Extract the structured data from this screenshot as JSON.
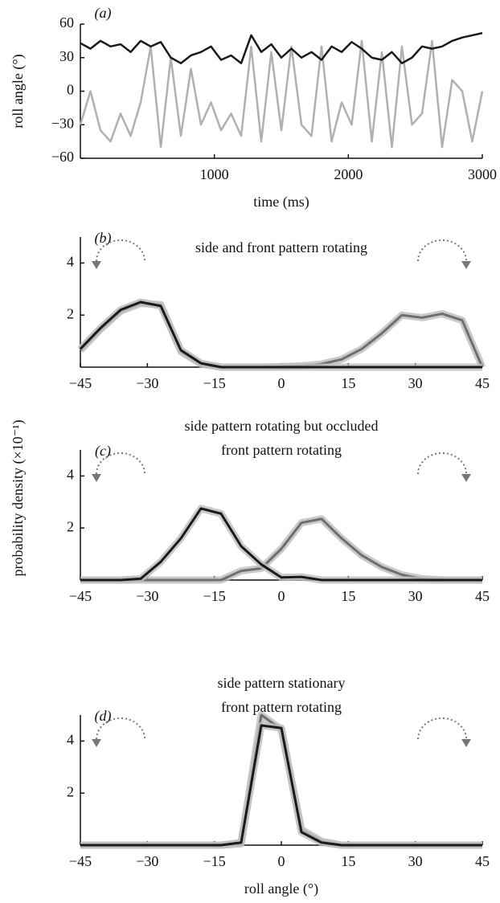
{
  "shared_ylabel": "probability density (×10⁻¹)",
  "chart_data": [
    {
      "type": "line",
      "label": "(a)",
      "xlabel": "time (ms)",
      "ylabel": "roll angle (°)",
      "x": [
        0,
        75,
        150,
        225,
        300,
        375,
        450,
        525,
        600,
        675,
        750,
        825,
        900,
        975,
        1050,
        1125,
        1200,
        1275,
        1350,
        1425,
        1500,
        1575,
        1650,
        1725,
        1800,
        1875,
        1950,
        2025,
        2100,
        2175,
        2250,
        2325,
        2400,
        2475,
        2550,
        2625,
        2700,
        2775,
        2850,
        2925,
        3000
      ],
      "xlim": [
        0,
        3000
      ],
      "xticks": [
        1000,
        2000,
        3000
      ],
      "ylim": [
        -60,
        60
      ],
      "yticks": [
        60,
        30,
        0,
        {
          "value": -30,
          "label": "−30"
        },
        {
          "value": -60,
          "label": "−60"
        }
      ],
      "series": [
        {
          "color": "#b0b0b0",
          "values": [
            -30,
            0,
            -35,
            -45,
            -20,
            -40,
            -10,
            40,
            -50,
            30,
            -40,
            20,
            -30,
            -10,
            -35,
            -20,
            -40,
            40,
            -45,
            35,
            -35,
            40,
            -30,
            -40,
            40,
            -45,
            -10,
            -30,
            45,
            -45,
            35,
            -50,
            40,
            -30,
            -20,
            45,
            -50,
            10,
            0,
            -45,
            0
          ]
        },
        {
          "color": "#1a1a1a",
          "values": [
            43,
            38,
            45,
            40,
            42,
            35,
            45,
            40,
            44,
            30,
            25,
            32,
            35,
            40,
            28,
            32,
            25,
            50,
            35,
            42,
            30,
            38,
            30,
            35,
            28,
            40,
            35,
            44,
            38,
            30,
            28,
            35,
            25,
            30,
            40,
            38,
            40,
            45,
            48,
            50,
            52
          ]
        }
      ]
    },
    {
      "type": "line",
      "label": "(b)",
      "title": "side and front pattern rotating",
      "x": [
        -45,
        -40.5,
        -36,
        -31.5,
        -27,
        -22.5,
        -18,
        -13.5,
        -9,
        -4.5,
        0,
        4.5,
        9,
        13.5,
        18,
        22.5,
        27,
        31.5,
        36,
        40.5,
        45
      ],
      "xlim": [
        -45,
        45
      ],
      "xticks": [
        {
          "value": -45,
          "label": "−45"
        },
        {
          "value": -30,
          "label": "−30"
        },
        {
          "value": -15,
          "label": "−15"
        },
        0,
        15,
        30,
        45
      ],
      "ylim": [
        0,
        5
      ],
      "yticks": [
        2,
        4
      ],
      "series": [
        {
          "color": "#6e6e6e",
          "values": [
            0.65,
            1.45,
            2.15,
            2.45,
            2.4,
            0.6,
            0.12,
            0,
            0,
            0,
            0.02,
            0.05,
            0.12,
            0.3,
            0.7,
            1.3,
            2.0,
            1.9,
            2.05,
            1.8,
            0
          ]
        },
        {
          "color": "#1a1a1a",
          "values": [
            0.7,
            1.5,
            2.2,
            2.5,
            2.35,
            0.65,
            0.15,
            0,
            0,
            0,
            0,
            0,
            0,
            0,
            0,
            0,
            0,
            0,
            0,
            0,
            0
          ]
        }
      ]
    },
    {
      "type": "line",
      "label": "(c)",
      "title": [
        "side pattern rotating but occluded",
        "front pattern rotating"
      ],
      "x": [
        -45,
        -40.5,
        -36,
        -31.5,
        -27,
        -22.5,
        -18,
        -13.5,
        -9,
        -4.5,
        0,
        4.5,
        9,
        13.5,
        18,
        22.5,
        27,
        31.5,
        36,
        40.5,
        45
      ],
      "xlim": [
        -45,
        45
      ],
      "xticks": [
        {
          "value": -45,
          "label": "−45"
        },
        {
          "value": -30,
          "label": "−30"
        },
        {
          "value": -15,
          "label": "−15"
        },
        0,
        15,
        30,
        45
      ],
      "ylim": [
        0,
        5
      ],
      "yticks": [
        2,
        4
      ],
      "series": [
        {
          "color": "#6e6e6e",
          "values": [
            0,
            0,
            0,
            0,
            0,
            0,
            0,
            0,
            0.35,
            0.45,
            1.2,
            2.2,
            2.35,
            1.6,
            0.95,
            0.5,
            0.2,
            0.05,
            0,
            0,
            0
          ]
        },
        {
          "color": "#1a1a1a",
          "values": [
            0,
            0,
            0,
            0.05,
            0.7,
            1.6,
            2.75,
            2.55,
            1.3,
            0.6,
            0.1,
            0.12,
            0,
            0,
            0,
            0,
            0,
            0,
            0,
            0,
            0
          ]
        }
      ]
    },
    {
      "type": "line",
      "label": "(d)",
      "title": [
        "side pattern stationary",
        "front pattern rotating"
      ],
      "xlabel": "roll angle (°)",
      "x": [
        -45,
        -40.5,
        -36,
        -31.5,
        -27,
        -22.5,
        -18,
        -13.5,
        -9,
        -4.5,
        0,
        4.5,
        9,
        13.5,
        18,
        22.5,
        27,
        31.5,
        36,
        40.5,
        45
      ],
      "xlim": [
        -45,
        45
      ],
      "xticks": [
        {
          "value": -45,
          "label": "−45"
        },
        {
          "value": -30,
          "label": "−30"
        },
        {
          "value": -15,
          "label": "−15"
        },
        0,
        15,
        30,
        45
      ],
      "ylim": [
        0,
        5
      ],
      "yticks": [
        2,
        4
      ],
      "series": [
        {
          "color": "#6e6e6e",
          "values": [
            0,
            0,
            0,
            0,
            0,
            0,
            0,
            0,
            0.05,
            5.0,
            4.45,
            0.6,
            0.15,
            0,
            0,
            0,
            0,
            0,
            0,
            0,
            0
          ]
        },
        {
          "color": "#1a1a1a",
          "values": [
            0,
            0,
            0,
            0,
            0,
            0,
            0,
            0,
            0.1,
            4.6,
            4.5,
            0.5,
            0.1,
            0,
            0,
            0,
            0,
            0,
            0,
            0,
            0
          ]
        }
      ]
    }
  ]
}
